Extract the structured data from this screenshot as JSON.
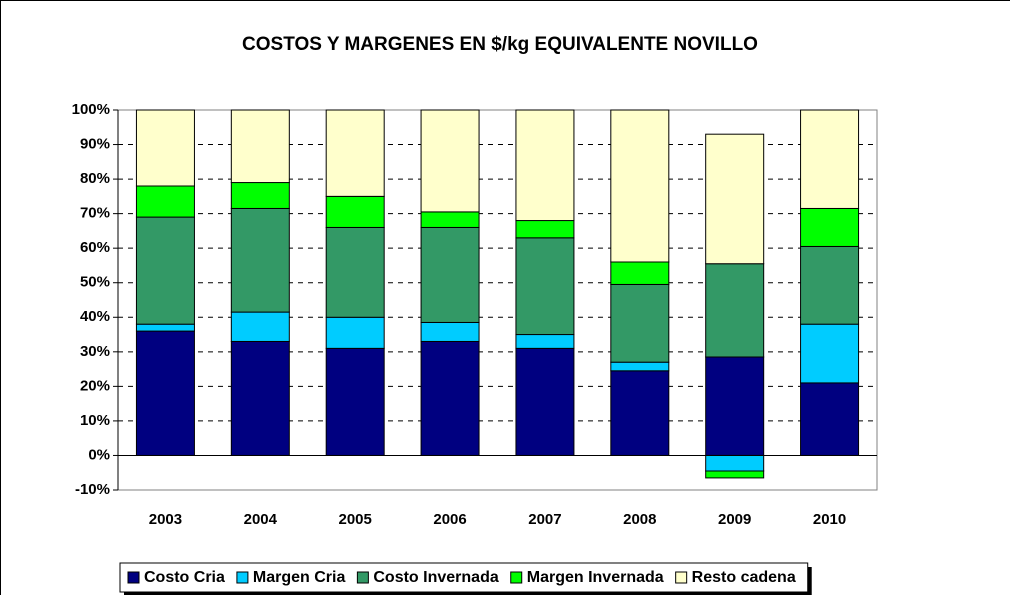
{
  "chart_data": {
    "type": "stacked_bar",
    "title": "COSTOS Y MARGENES EN $/kg EQUIVALENTE NOVILLO",
    "categories": [
      "2003",
      "2004",
      "2005",
      "2006",
      "2007",
      "2008",
      "2009",
      "2010"
    ],
    "series": [
      {
        "name": "Costo Cria",
        "color": "#000080",
        "values": [
          36,
          33,
          31,
          33,
          31,
          24.5,
          28.5,
          21
        ]
      },
      {
        "name": "Margen Cria",
        "color": "#00ccff",
        "values": [
          2,
          8.5,
          9,
          5.5,
          4,
          2.5,
          -4.5,
          17
        ]
      },
      {
        "name": "Costo Invernada",
        "color": "#339966",
        "values": [
          31,
          30,
          26,
          27.5,
          28,
          22.5,
          27,
          22.5
        ]
      },
      {
        "name": "Margen Invernada",
        "color": "#00ff00",
        "values": [
          9,
          7.5,
          9,
          4.5,
          5,
          6.5,
          -2,
          11
        ]
      },
      {
        "name": "Resto cadena",
        "color": "#ffffcc",
        "values": [
          22,
          21,
          25,
          29.5,
          32,
          44,
          37.5,
          28.5
        ]
      }
    ],
    "ylim": [
      -10,
      100
    ],
    "yticks": [
      {
        "value": -10,
        "label": "-10%"
      },
      {
        "value": 0,
        "label": "0%"
      },
      {
        "value": 10,
        "label": "10%"
      },
      {
        "value": 20,
        "label": "20%"
      },
      {
        "value": 30,
        "label": "30%"
      },
      {
        "value": 40,
        "label": "40%"
      },
      {
        "value": 50,
        "label": "50%"
      },
      {
        "value": 60,
        "label": "60%"
      },
      {
        "value": 70,
        "label": "70%"
      },
      {
        "value": 80,
        "label": "80%"
      },
      {
        "value": 90,
        "label": "90%"
      },
      {
        "value": 100,
        "label": "100%"
      }
    ],
    "grid": true,
    "legend": "bottom"
  }
}
